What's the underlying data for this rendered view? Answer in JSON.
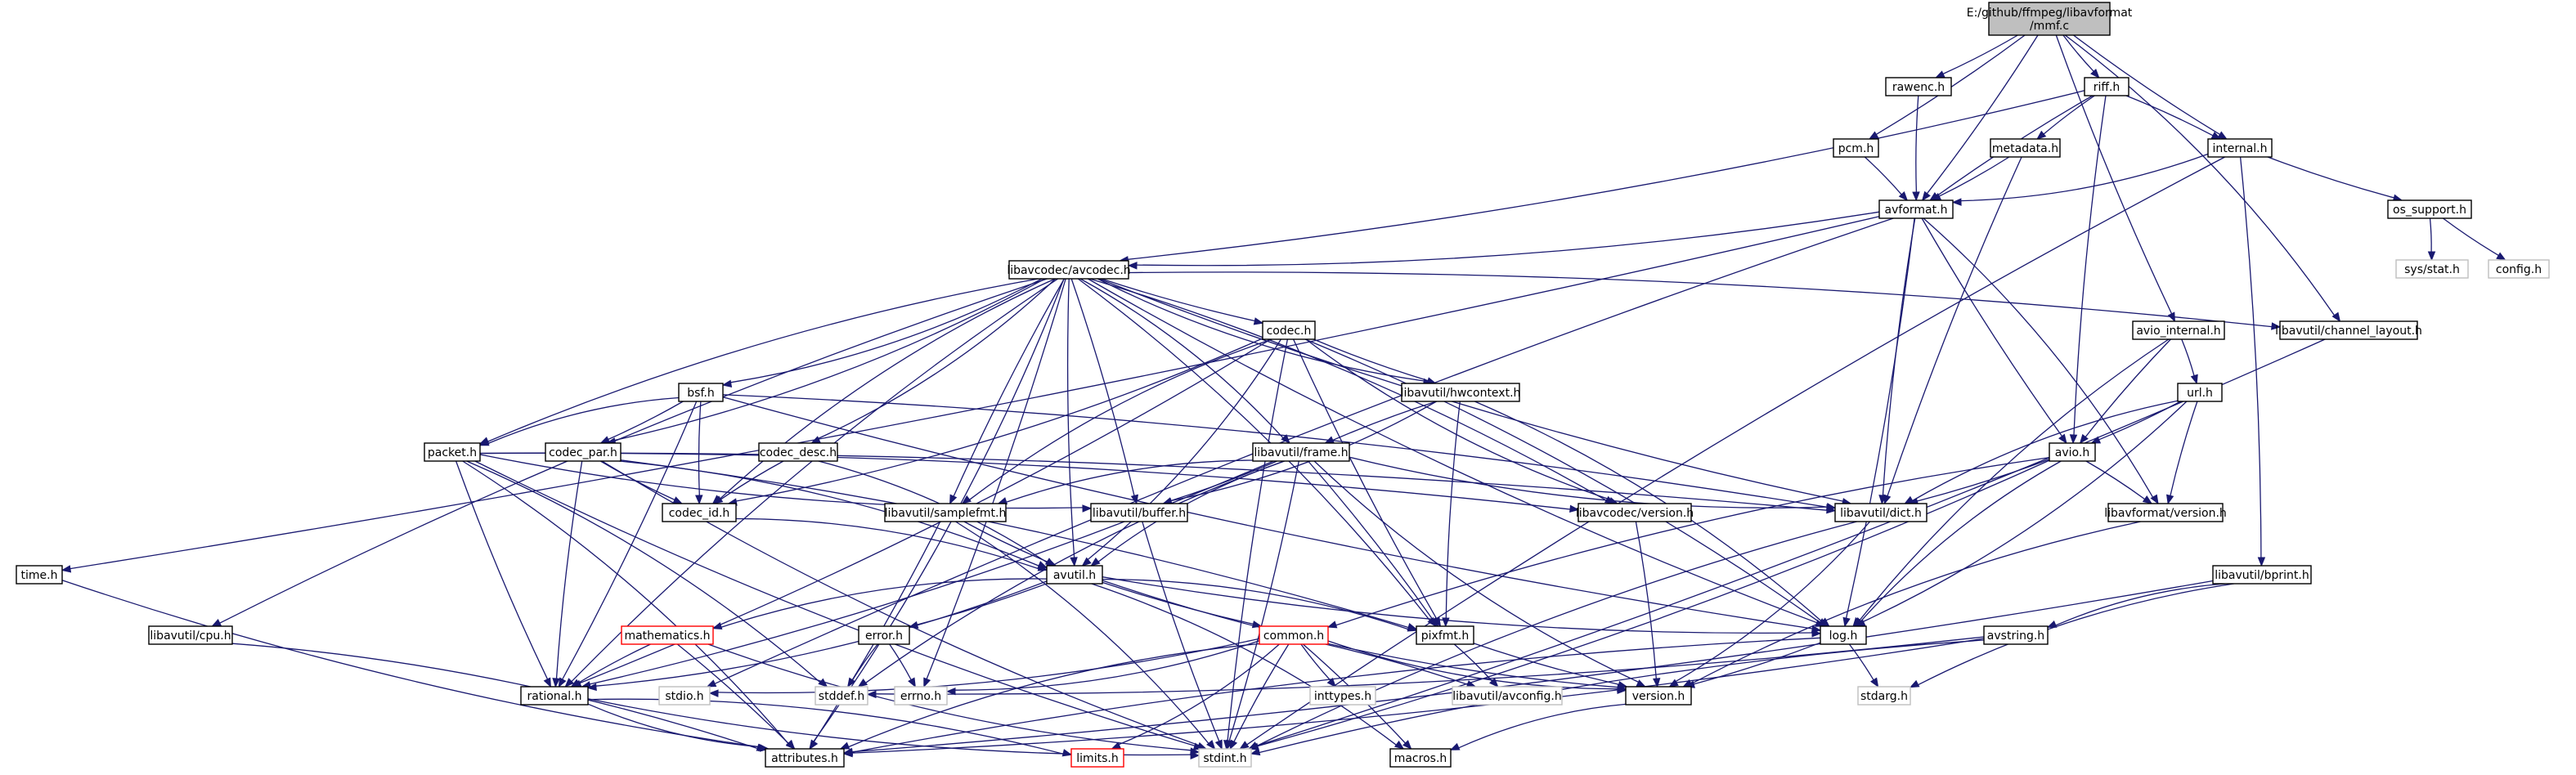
{
  "diagram": {
    "type": "include-dependency-graph",
    "root": "mmf_c",
    "colors": {
      "root_fill": "#bfbfbf",
      "node_fill": "#ffffff",
      "node_border": "#000000",
      "system_border": "#bfbfbf",
      "truncated_border": "#ff0000",
      "edge": "#191970"
    },
    "nodes": [
      {
        "id": "mmf_c",
        "lines": [
          "E:/github/ffmpeg/libavformat",
          "/mmf.c"
        ],
        "kind": "root"
      },
      {
        "id": "rawenc_h",
        "lines": [
          "rawenc.h"
        ],
        "kind": "normal"
      },
      {
        "id": "riff_h",
        "lines": [
          "riff.h"
        ],
        "kind": "normal"
      },
      {
        "id": "pcm_h",
        "lines": [
          "pcm.h"
        ],
        "kind": "normal"
      },
      {
        "id": "metadata_h",
        "lines": [
          "metadata.h"
        ],
        "kind": "normal"
      },
      {
        "id": "internal_h",
        "lines": [
          "internal.h"
        ],
        "kind": "normal"
      },
      {
        "id": "avformat_h",
        "lines": [
          "avformat.h"
        ],
        "kind": "normal"
      },
      {
        "id": "os_support_h",
        "lines": [
          "os_support.h"
        ],
        "kind": "normal"
      },
      {
        "id": "sys_stat_h",
        "lines": [
          "sys/stat.h"
        ],
        "kind": "system"
      },
      {
        "id": "config_h",
        "lines": [
          "config.h"
        ],
        "kind": "system"
      },
      {
        "id": "avcodec_h",
        "lines": [
          "libavcodec/avcodec.h"
        ],
        "kind": "normal"
      },
      {
        "id": "codec_h",
        "lines": [
          "codec.h"
        ],
        "kind": "normal"
      },
      {
        "id": "avio_internal_h",
        "lines": [
          "avio_internal.h"
        ],
        "kind": "normal"
      },
      {
        "id": "channel_layout_h",
        "lines": [
          "libavutil/channel_layout.h"
        ],
        "kind": "normal"
      },
      {
        "id": "bsf_h",
        "lines": [
          "bsf.h"
        ],
        "kind": "normal"
      },
      {
        "id": "hwcontext_h",
        "lines": [
          "libavutil/hwcontext.h"
        ],
        "kind": "normal"
      },
      {
        "id": "url_h",
        "lines": [
          "url.h"
        ],
        "kind": "normal"
      },
      {
        "id": "packet_h",
        "lines": [
          "packet.h"
        ],
        "kind": "normal"
      },
      {
        "id": "codec_par_h",
        "lines": [
          "codec_par.h"
        ],
        "kind": "normal"
      },
      {
        "id": "codec_desc_h",
        "lines": [
          "codec_desc.h"
        ],
        "kind": "normal"
      },
      {
        "id": "frame_h",
        "lines": [
          "libavutil/frame.h"
        ],
        "kind": "normal"
      },
      {
        "id": "avio_h",
        "lines": [
          "avio.h"
        ],
        "kind": "normal"
      },
      {
        "id": "codec_id_h",
        "lines": [
          "codec_id.h"
        ],
        "kind": "normal"
      },
      {
        "id": "samplefmt_h",
        "lines": [
          "libavutil/samplefmt.h"
        ],
        "kind": "normal"
      },
      {
        "id": "buffer_h",
        "lines": [
          "libavutil/buffer.h"
        ],
        "kind": "normal"
      },
      {
        "id": "avcodec_version_h",
        "lines": [
          "libavcodec/version.h"
        ],
        "kind": "normal"
      },
      {
        "id": "dict_h",
        "lines": [
          "libavutil/dict.h"
        ],
        "kind": "normal"
      },
      {
        "id": "avformat_version_h",
        "lines": [
          "libavformat/version.h"
        ],
        "kind": "normal"
      },
      {
        "id": "time_h",
        "lines": [
          "time.h"
        ],
        "kind": "normal"
      },
      {
        "id": "avutil_h",
        "lines": [
          "avutil.h"
        ],
        "kind": "normal"
      },
      {
        "id": "bprint_h",
        "lines": [
          "libavutil/bprint.h"
        ],
        "kind": "normal"
      },
      {
        "id": "cpu_h",
        "lines": [
          "libavutil/cpu.h"
        ],
        "kind": "normal"
      },
      {
        "id": "mathematics_h",
        "lines": [
          "mathematics.h"
        ],
        "kind": "truncated"
      },
      {
        "id": "error_h",
        "lines": [
          "error.h"
        ],
        "kind": "normal"
      },
      {
        "id": "common_h",
        "lines": [
          "common.h"
        ],
        "kind": "truncated"
      },
      {
        "id": "pixfmt_h",
        "lines": [
          "pixfmt.h"
        ],
        "kind": "normal"
      },
      {
        "id": "log_h",
        "lines": [
          "log.h"
        ],
        "kind": "normal"
      },
      {
        "id": "avstring_h",
        "lines": [
          "avstring.h"
        ],
        "kind": "normal"
      },
      {
        "id": "rational_h",
        "lines": [
          "rational.h"
        ],
        "kind": "normal"
      },
      {
        "id": "stdio_h",
        "lines": [
          "stdio.h"
        ],
        "kind": "system"
      },
      {
        "id": "stddef_h",
        "lines": [
          "stddef.h"
        ],
        "kind": "system"
      },
      {
        "id": "errno_h",
        "lines": [
          "errno.h"
        ],
        "kind": "system"
      },
      {
        "id": "inttypes_h",
        "lines": [
          "inttypes.h"
        ],
        "kind": "system"
      },
      {
        "id": "avconfig_h",
        "lines": [
          "libavutil/avconfig.h"
        ],
        "kind": "system"
      },
      {
        "id": "version_h",
        "lines": [
          "version.h"
        ],
        "kind": "normal"
      },
      {
        "id": "stdarg_h",
        "lines": [
          "stdarg.h"
        ],
        "kind": "system"
      },
      {
        "id": "attributes_h",
        "lines": [
          "attributes.h"
        ],
        "kind": "normal"
      },
      {
        "id": "limits_h",
        "lines": [
          "limits.h"
        ],
        "kind": "truncated"
      },
      {
        "id": "stdint_h",
        "lines": [
          "stdint.h"
        ],
        "kind": "system"
      },
      {
        "id": "macros_h",
        "lines": [
          "macros.h"
        ],
        "kind": "normal"
      }
    ],
    "edges": [
      [
        "mmf_c",
        "rawenc_h"
      ],
      [
        "mmf_c",
        "riff_h"
      ],
      [
        "mmf_c",
        "pcm_h"
      ],
      [
        "mmf_c",
        "internal_h"
      ],
      [
        "mmf_c",
        "avformat_h"
      ],
      [
        "mmf_c",
        "avio_internal_h"
      ],
      [
        "mmf_c",
        "channel_layout_h"
      ],
      [
        "rawenc_h",
        "avformat_h"
      ],
      [
        "pcm_h",
        "avformat_h"
      ],
      [
        "riff_h",
        "metadata_h"
      ],
      [
        "riff_h",
        "internal_h"
      ],
      [
        "riff_h",
        "avformat_h"
      ],
      [
        "riff_h",
        "avcodec_h"
      ],
      [
        "riff_h",
        "avio_h"
      ],
      [
        "metadata_h",
        "avformat_h"
      ],
      [
        "metadata_h",
        "dict_h"
      ],
      [
        "internal_h",
        "avformat_h"
      ],
      [
        "internal_h",
        "os_support_h"
      ],
      [
        "internal_h",
        "bprint_h"
      ],
      [
        "internal_h",
        "stdint_h"
      ],
      [
        "os_support_h",
        "sys_stat_h"
      ],
      [
        "os_support_h",
        "config_h"
      ],
      [
        "avformat_h",
        "time_h"
      ],
      [
        "avformat_h",
        "stdio_h"
      ],
      [
        "avformat_h",
        "avcodec_h"
      ],
      [
        "avformat_h",
        "dict_h"
      ],
      [
        "avformat_h",
        "log_h"
      ],
      [
        "avformat_h",
        "avio_h"
      ],
      [
        "avformat_h",
        "avformat_version_h"
      ],
      [
        "avcodec_h",
        "samplefmt_h"
      ],
      [
        "avcodec_h",
        "attributes_h"
      ],
      [
        "avcodec_h",
        "avutil_h"
      ],
      [
        "avcodec_h",
        "buffer_h"
      ],
      [
        "avcodec_h",
        "cpu_h"
      ],
      [
        "avcodec_h",
        "channel_layout_h"
      ],
      [
        "avcodec_h",
        "dict_h"
      ],
      [
        "avcodec_h",
        "frame_h"
      ],
      [
        "avcodec_h",
        "log_h"
      ],
      [
        "avcodec_h",
        "pixfmt_h"
      ],
      [
        "avcodec_h",
        "rational_h"
      ],
      [
        "avcodec_h",
        "bsf_h"
      ],
      [
        "avcodec_h",
        "codec_h"
      ],
      [
        "avcodec_h",
        "codec_desc_h"
      ],
      [
        "avcodec_h",
        "codec_id_h"
      ],
      [
        "avcodec_h",
        "codec_par_h"
      ],
      [
        "avcodec_h",
        "packet_h"
      ],
      [
        "avcodec_h",
        "avcodec_version_h"
      ],
      [
        "avcodec_h",
        "hwcontext_h"
      ],
      [
        "avcodec_h",
        "errno_h"
      ],
      [
        "codec_h",
        "stdint_h"
      ],
      [
        "codec_h",
        "avutil_h"
      ],
      [
        "codec_h",
        "hwcontext_h"
      ],
      [
        "codec_h",
        "log_h"
      ],
      [
        "codec_h",
        "pixfmt_h"
      ],
      [
        "codec_h",
        "rational_h"
      ],
      [
        "codec_h",
        "samplefmt_h"
      ],
      [
        "codec_h",
        "codec_id_h"
      ],
      [
        "codec_h",
        "avcodec_version_h"
      ],
      [
        "hwcontext_h",
        "buffer_h"
      ],
      [
        "hwcontext_h",
        "frame_h"
      ],
      [
        "hwcontext_h",
        "log_h"
      ],
      [
        "hwcontext_h",
        "pixfmt_h"
      ],
      [
        "bsf_h",
        "dict_h"
      ],
      [
        "bsf_h",
        "log_h"
      ],
      [
        "bsf_h",
        "rational_h"
      ],
      [
        "bsf_h",
        "codec_id_h"
      ],
      [
        "bsf_h",
        "codec_par_h"
      ],
      [
        "bsf_h",
        "packet_h"
      ],
      [
        "packet_h",
        "stddef_h"
      ],
      [
        "packet_h",
        "stdint_h"
      ],
      [
        "packet_h",
        "attributes_h"
      ],
      [
        "packet_h",
        "buffer_h"
      ],
      [
        "packet_h",
        "dict_h"
      ],
      [
        "packet_h",
        "rational_h"
      ],
      [
        "packet_h",
        "avcodec_version_h"
      ],
      [
        "codec_par_h",
        "stdint_h"
      ],
      [
        "codec_par_h",
        "avutil_h"
      ],
      [
        "codec_par_h",
        "rational_h"
      ],
      [
        "codec_par_h",
        "pixfmt_h"
      ],
      [
        "codec_par_h",
        "codec_id_h"
      ],
      [
        "codec_desc_h",
        "avutil_h"
      ],
      [
        "codec_desc_h",
        "codec_id_h"
      ],
      [
        "codec_id_h",
        "avutil_h"
      ],
      [
        "frame_h",
        "stddef_h"
      ],
      [
        "frame_h",
        "stdint_h"
      ],
      [
        "frame_h",
        "avutil_h"
      ],
      [
        "frame_h",
        "buffer_h"
      ],
      [
        "frame_h",
        "dict_h"
      ],
      [
        "frame_h",
        "rational_h"
      ],
      [
        "frame_h",
        "samplefmt_h"
      ],
      [
        "frame_h",
        "pixfmt_h"
      ],
      [
        "frame_h",
        "version_h"
      ],
      [
        "samplefmt_h",
        "stdint_h"
      ],
      [
        "samplefmt_h",
        "avutil_h"
      ],
      [
        "samplefmt_h",
        "attributes_h"
      ],
      [
        "buffer_h",
        "stdint_h"
      ],
      [
        "avcodec_version_h",
        "version_h"
      ],
      [
        "dict_h",
        "stdint_h"
      ],
      [
        "dict_h",
        "version_h"
      ],
      [
        "avio_internal_h",
        "avio_h"
      ],
      [
        "avio_internal_h",
        "url_h"
      ],
      [
        "avio_internal_h",
        "log_h"
      ],
      [
        "url_h",
        "avio_h"
      ],
      [
        "url_h",
        "dict_h"
      ],
      [
        "url_h",
        "log_h"
      ],
      [
        "url_h",
        "avformat_version_h"
      ],
      [
        "avio_h",
        "stdint_h"
      ],
      [
        "avio_h",
        "common_h"
      ],
      [
        "avio_h",
        "dict_h"
      ],
      [
        "avio_h",
        "log_h"
      ],
      [
        "avio_h",
        "avformat_version_h"
      ],
      [
        "avformat_version_h",
        "version_h"
      ],
      [
        "channel_layout_h",
        "stdint_h"
      ],
      [
        "time_h",
        "attributes_h"
      ],
      [
        "cpu_h",
        "attributes_h"
      ],
      [
        "avutil_h",
        "common_h"
      ],
      [
        "avutil_h",
        "error_h"
      ],
      [
        "avutil_h",
        "version_h"
      ],
      [
        "avutil_h",
        "macros_h"
      ],
      [
        "avutil_h",
        "mathematics_h"
      ],
      [
        "avutil_h",
        "rational_h"
      ],
      [
        "avutil_h",
        "log_h"
      ],
      [
        "avutil_h",
        "pixfmt_h"
      ],
      [
        "mathematics_h",
        "stdint_h"
      ],
      [
        "mathematics_h",
        "attributes_h"
      ],
      [
        "mathematics_h",
        "rational_h"
      ],
      [
        "error_h",
        "errno_h"
      ],
      [
        "error_h",
        "stddef_h"
      ],
      [
        "common_h",
        "errno_h"
      ],
      [
        "common_h",
        "inttypes_h"
      ],
      [
        "common_h",
        "limits_h"
      ],
      [
        "common_h",
        "stdint_h"
      ],
      [
        "common_h",
        "stdio_h"
      ],
      [
        "common_h",
        "attributes_h"
      ],
      [
        "common_h",
        "macros_h"
      ],
      [
        "common_h",
        "version_h"
      ],
      [
        "common_h",
        "avconfig_h"
      ],
      [
        "rational_h",
        "stdint_h"
      ],
      [
        "rational_h",
        "limits_h"
      ],
      [
        "rational_h",
        "attributes_h"
      ],
      [
        "pixfmt_h",
        "avconfig_h"
      ],
      [
        "pixfmt_h",
        "version_h"
      ],
      [
        "log_h",
        "stdarg_h"
      ],
      [
        "log_h",
        "attributes_h"
      ],
      [
        "log_h",
        "version_h"
      ],
      [
        "bprint_h",
        "stdarg_h"
      ],
      [
        "bprint_h",
        "attributes_h"
      ],
      [
        "bprint_h",
        "avstring_h"
      ],
      [
        "avstring_h",
        "stddef_h"
      ],
      [
        "avstring_h",
        "stdint_h"
      ],
      [
        "avstring_h",
        "attributes_h"
      ],
      [
        "version_h",
        "macros_h"
      ]
    ]
  }
}
